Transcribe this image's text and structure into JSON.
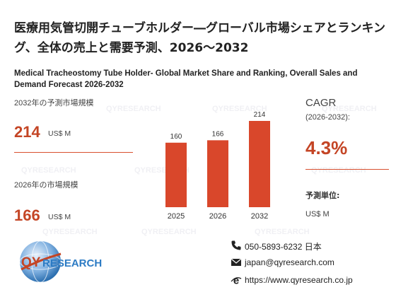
{
  "title_jp": "医療用気管切開チューブホルダー―グローバル市場シェアとランキング、全体の売上と需要予測、2026～2032",
  "title_en": "Medical Tracheostomy Tube Holder- Global Market Share and Ranking, Overall Sales and Demand Forecast 2026-2032",
  "left": {
    "label_2032": "2032年の予測市場規模",
    "value_2032": "214",
    "unit_2032": "US$ M",
    "label_2026": "2026年の市場規模",
    "value_2026": "166",
    "unit_2026": "US$ M"
  },
  "chart_data": {
    "type": "bar",
    "categories": [
      "2025",
      "2026",
      "2032"
    ],
    "values": [
      160,
      166,
      214
    ],
    "color": "#d9472b"
  },
  "right": {
    "cagr_label": "CAGR",
    "cagr_range": "(2026-2032):",
    "cagr_value": "4.3%",
    "unit_head": "予測単位:",
    "unit_value": "US$ M"
  },
  "contact": {
    "phone": "050-5893-6232 日本",
    "email": "japan@qyresearch.com",
    "web": "https://www.qyresearch.co.jp"
  },
  "logo": {
    "part1": "QY",
    "part2": "RESEARCH",
    "color1": "#c44525",
    "color2": "#2c7bc4"
  },
  "watermark": "QYRESEARCH"
}
